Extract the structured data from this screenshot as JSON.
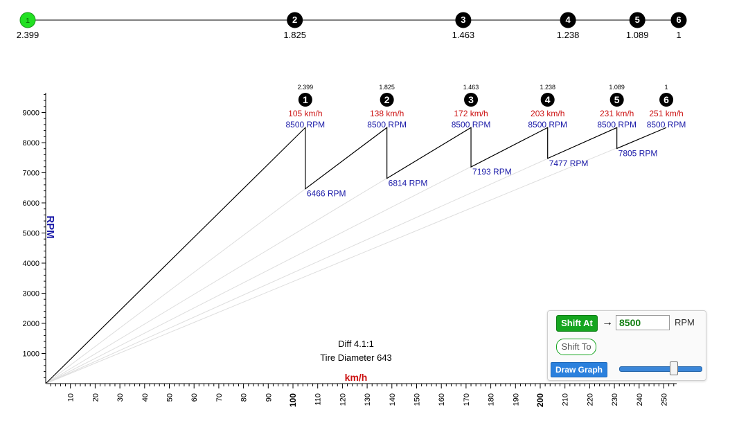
{
  "top_strip": {
    "gears": [
      {
        "label": "1",
        "ratio": "2.399"
      },
      {
        "label": "2",
        "ratio": "1.825"
      },
      {
        "label": "3",
        "ratio": "1.463"
      },
      {
        "label": "4",
        "ratio": "1.238"
      },
      {
        "label": "5",
        "ratio": "1.089"
      },
      {
        "label": "6",
        "ratio": "1"
      }
    ],
    "selected_index": 0,
    "colors": {
      "selected": "#22e022",
      "normal": "#000000"
    }
  },
  "chart_data": {
    "type": "line",
    "xlabel": "km/h",
    "ylabel": "RPM",
    "xlim": [
      0,
      255
    ],
    "ylim": [
      0,
      9700
    ],
    "x_ticks": [
      10,
      20,
      30,
      40,
      50,
      60,
      70,
      80,
      90,
      100,
      110,
      120,
      130,
      140,
      150,
      160,
      170,
      180,
      190,
      200,
      210,
      220,
      230,
      240,
      250
    ],
    "bold_x_ticks": [
      100,
      200
    ],
    "y_ticks": [
      1000,
      2000,
      3000,
      4000,
      5000,
      6000,
      7000,
      8000,
      9000
    ],
    "gears": [
      {
        "gear": "1",
        "ratio": "2.399",
        "shift_speed": 105,
        "shift_speed_label": "105 km/h",
        "shift_rpm_label": "8500 RPM",
        "drop_rpm": 6466,
        "drop_rpm_label": "6466 RPM"
      },
      {
        "gear": "2",
        "ratio": "1.825",
        "shift_speed": 138,
        "shift_speed_label": "138 km/h",
        "shift_rpm_label": "8500 RPM",
        "drop_rpm": 6814,
        "drop_rpm_label": "6814 RPM"
      },
      {
        "gear": "3",
        "ratio": "1.463",
        "shift_speed": 172,
        "shift_speed_label": "172 km/h",
        "shift_rpm_label": "8500 RPM",
        "drop_rpm": 7193,
        "drop_rpm_label": "7193 RPM"
      },
      {
        "gear": "4",
        "ratio": "1.238",
        "shift_speed": 203,
        "shift_speed_label": "203 km/h",
        "shift_rpm_label": "8500 RPM",
        "drop_rpm": 7477,
        "drop_rpm_label": "7477 RPM"
      },
      {
        "gear": "5",
        "ratio": "1.089",
        "shift_speed": 231,
        "shift_speed_label": "231 km/h",
        "shift_rpm_label": "8500 RPM",
        "drop_rpm": 7805,
        "drop_rpm_label": "7805 RPM"
      },
      {
        "gear": "6",
        "ratio": "1",
        "shift_speed": 251,
        "shift_speed_label": "251 km/h",
        "shift_rpm_label": "8500 RPM",
        "drop_rpm": null,
        "drop_rpm_label": ""
      }
    ],
    "shift_rpm": 8500,
    "annotations": {
      "diff": "Diff 4.1:1",
      "tire": "Tire Diameter 643"
    },
    "colors": {
      "speed": "#cc1111",
      "rpm": "#1a1aa8",
      "line": "#000000",
      "guide": "#dddddd",
      "axis_label_x": "#cc1111",
      "axis_label_y": "#1a1aa8"
    }
  },
  "controls": {
    "shift_at_label": "Shift At",
    "arrow": "→",
    "rpm_value": "8500",
    "rpm_unit": "RPM",
    "shift_to_label": "Shift To",
    "draw_graph_label": "Draw Graph"
  }
}
